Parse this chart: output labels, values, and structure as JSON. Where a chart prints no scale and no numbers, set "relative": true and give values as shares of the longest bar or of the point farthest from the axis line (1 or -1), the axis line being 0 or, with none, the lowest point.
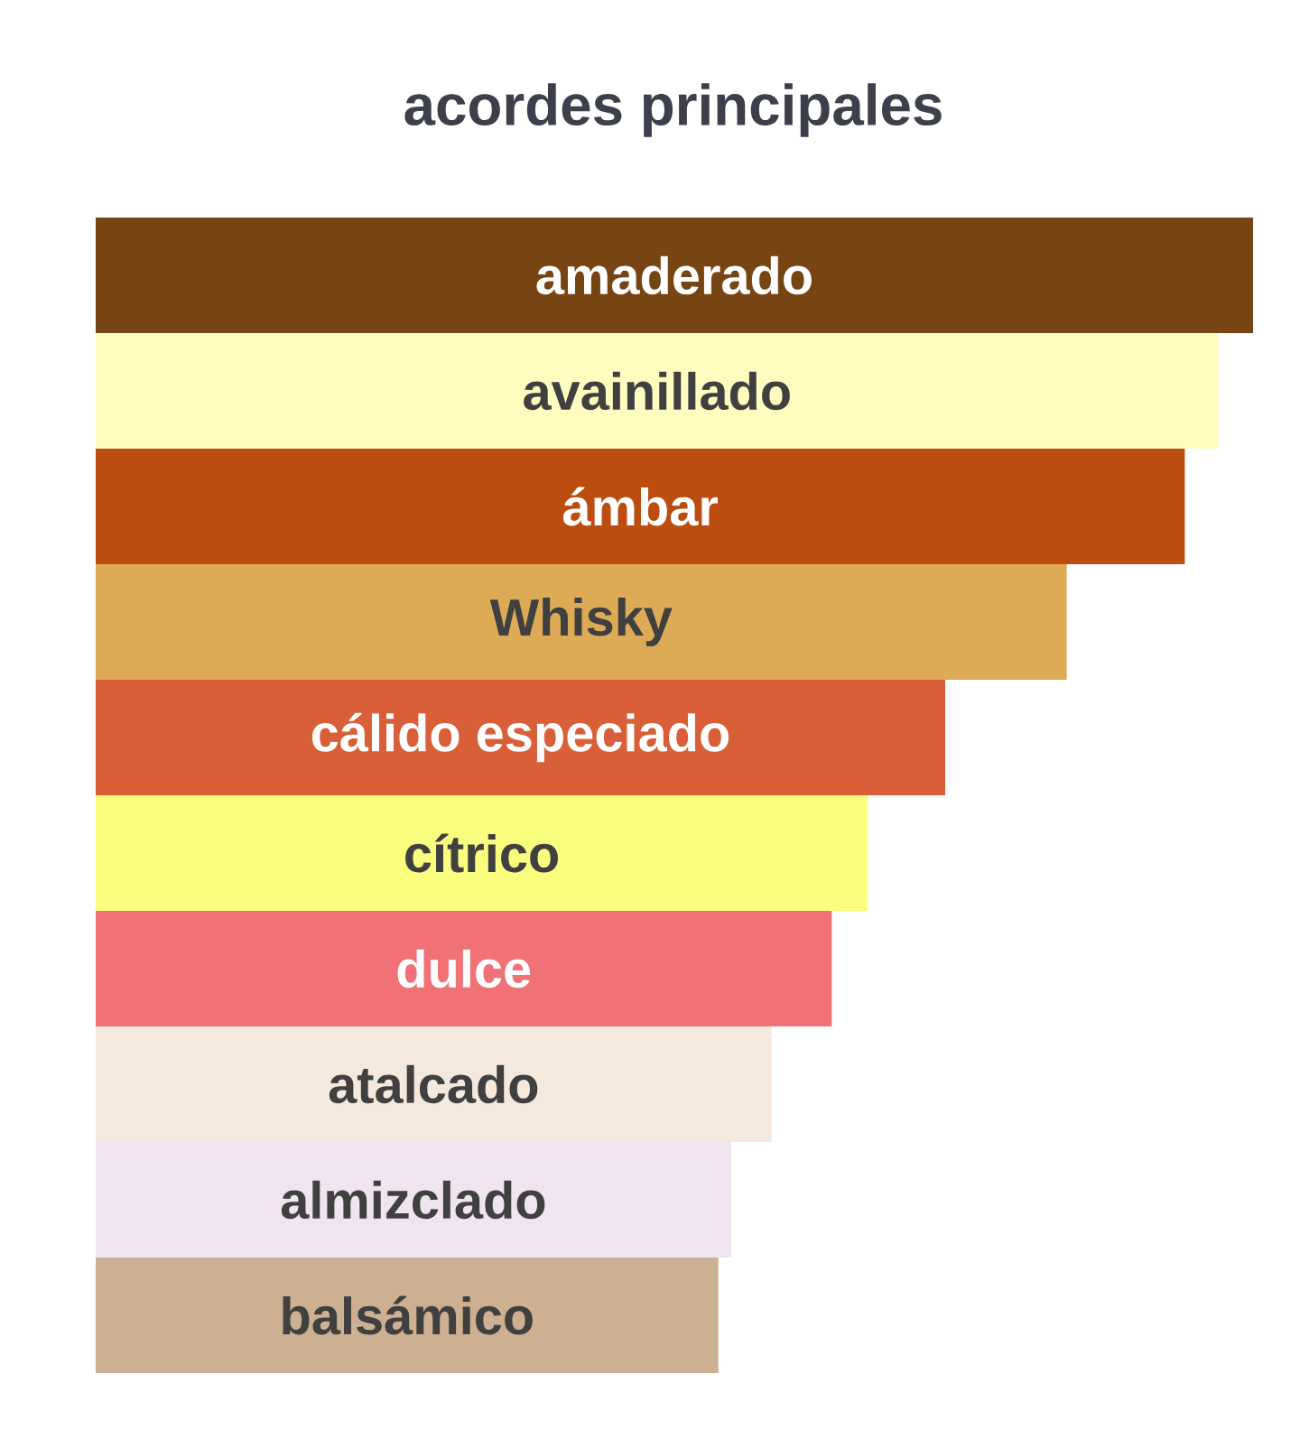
{
  "chart_data": {
    "type": "bar",
    "orientation": "horizontal",
    "relative": true,
    "title": "acordes principales",
    "categories": [
      "amaderado",
      "avainillado",
      "ámbar",
      "Whisky",
      "cálido especiado",
      "cítrico",
      "dulce",
      "atalcado",
      "almizclado",
      "balsámico"
    ],
    "values": [
      1,
      0.97,
      0.941,
      0.839,
      0.734,
      0.667,
      0.636,
      0.584,
      0.549,
      0.538
    ],
    "colors": [
      "#774414",
      "#fffcc0",
      "#bc4d10",
      "#ddaa55",
      "#d95f38",
      "#f9fe7f",
      "#f07277",
      "#f5e9de",
      "#f0e4f0",
      "#cdb091"
    ]
  }
}
